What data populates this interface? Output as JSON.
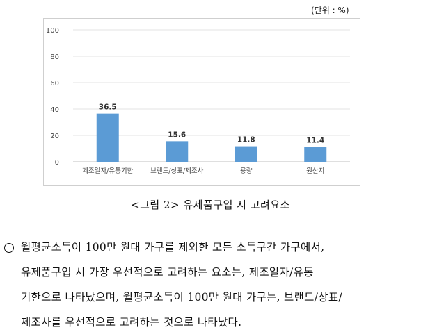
{
  "unit_label": "(단위 : %)",
  "caption": "<그림 2> 유제품구입 시 고려요소",
  "paragraph": {
    "bullet": "○",
    "lines": [
      "월평균소득이 100만 원대 가구를 제외한 모든 소득구간 가구에서,",
      "유제품구입 시 가장 우선적으로 고려하는 요소는, 제조일자/유통",
      "기한으로 나타났으며, 월평균소득이 100만 원대 가구는, 브랜드/상표/",
      "제조사를 우선적으로 고려하는 것으로 나타났다."
    ]
  },
  "chart_data": {
    "type": "bar",
    "categories": [
      "제조일자/유통기한",
      "브랜드/상표/제조사",
      "용량",
      "원산지"
    ],
    "values": [
      36.5,
      15.6,
      11.8,
      11.4
    ],
    "ylim": [
      0,
      100
    ],
    "yticks": [
      0,
      20,
      40,
      60,
      80,
      100
    ],
    "bar_color": "#5b9bd5",
    "grid": true,
    "legend": "none"
  }
}
